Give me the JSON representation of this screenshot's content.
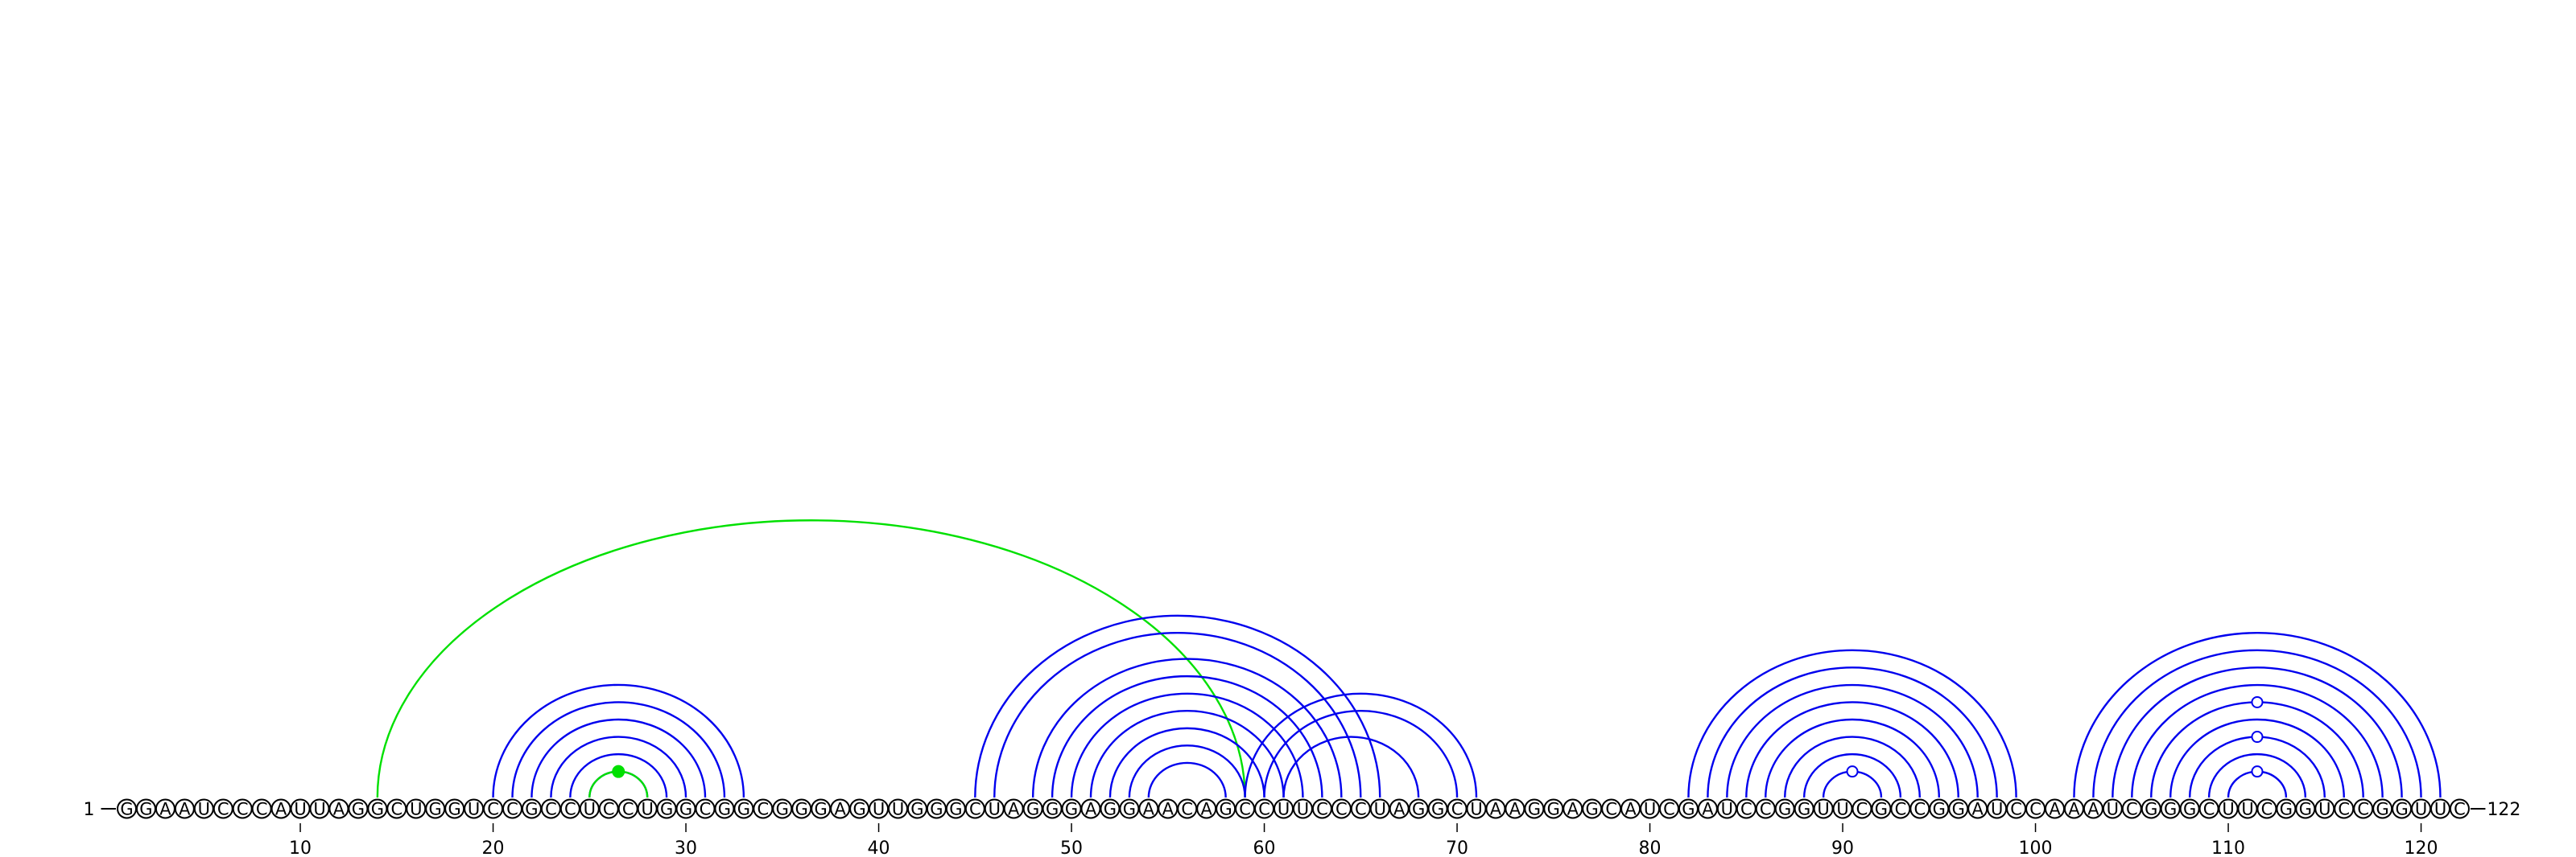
{
  "sequence": "GGAAUCCCAUUAGGCUGGUCCGCCUCCUGGCGGCGGGAGUUGGGCUAGGGAGGAACAGCCUUCCCUAGGCUAAGGAGCAUCGAUCCGGUUCGCCGGAUCCAAAUCGGGCUUCGGUCCGGUUC",
  "start_label": "1",
  "end_label": "122",
  "ticks": [
    10,
    20,
    30,
    40,
    50,
    60,
    70,
    80,
    90,
    100,
    110,
    120
  ],
  "colors": {
    "stem": "#0000ee",
    "pseudoknot": "#00e000"
  },
  "pairs": [
    {
      "i": 20,
      "j": 33,
      "color": "blue"
    },
    {
      "i": 21,
      "j": 32,
      "color": "blue"
    },
    {
      "i": 22,
      "j": 31,
      "color": "blue"
    },
    {
      "i": 23,
      "j": 30,
      "color": "blue"
    },
    {
      "i": 24,
      "j": 29,
      "color": "blue"
    },
    {
      "i": 25,
      "j": 28,
      "color": "blue"
    },
    {
      "i": 25,
      "j": 28,
      "color": "green"
    },
    {
      "i": 14,
      "j": 59,
      "color": "green"
    },
    {
      "i": 45,
      "j": 66,
      "color": "blue"
    },
    {
      "i": 46,
      "j": 65,
      "color": "blue"
    },
    {
      "i": 48,
      "j": 64,
      "color": "blue"
    },
    {
      "i": 49,
      "j": 63,
      "color": "blue"
    },
    {
      "i": 50,
      "j": 62,
      "color": "blue"
    },
    {
      "i": 51,
      "j": 61,
      "color": "blue"
    },
    {
      "i": 52,
      "j": 60,
      "color": "blue"
    },
    {
      "i": 53,
      "j": 59,
      "color": "blue"
    },
    {
      "i": 54,
      "j": 58,
      "color": "blue"
    },
    {
      "i": 59,
      "j": 71,
      "color": "blue"
    },
    {
      "i": 60,
      "j": 70,
      "color": "blue"
    },
    {
      "i": 61,
      "j": 68,
      "color": "blue"
    },
    {
      "i": 82,
      "j": 99,
      "color": "blue"
    },
    {
      "i": 83,
      "j": 98,
      "color": "blue"
    },
    {
      "i": 84,
      "j": 97,
      "color": "blue"
    },
    {
      "i": 85,
      "j": 96,
      "color": "blue"
    },
    {
      "i": 86,
      "j": 95,
      "color": "blue"
    },
    {
      "i": 87,
      "j": 94,
      "color": "blue"
    },
    {
      "i": 88,
      "j": 93,
      "color": "blue"
    },
    {
      "i": 89,
      "j": 92,
      "color": "blue"
    },
    {
      "i": 102,
      "j": 121,
      "color": "blue"
    },
    {
      "i": 103,
      "j": 120,
      "color": "blue"
    },
    {
      "i": 104,
      "j": 119,
      "color": "blue"
    },
    {
      "i": 105,
      "j": 118,
      "color": "blue"
    },
    {
      "i": 106,
      "j": 117,
      "color": "blue"
    },
    {
      "i": 107,
      "j": 116,
      "color": "blue"
    },
    {
      "i": 108,
      "j": 115,
      "color": "blue"
    },
    {
      "i": 109,
      "j": 114,
      "color": "blue"
    },
    {
      "i": 110,
      "j": 113,
      "color": "blue"
    }
  ],
  "markers": [
    {
      "i": 25,
      "j": 28,
      "filled": true,
      "color": "green"
    },
    {
      "i": 89,
      "j": 92,
      "filled": false,
      "color": "blue"
    },
    {
      "i": 110,
      "j": 113,
      "filled": false,
      "color": "blue"
    },
    {
      "i": 108,
      "j": 115,
      "filled": false,
      "color": "blue"
    },
    {
      "i": 106,
      "j": 117,
      "filled": false,
      "color": "blue"
    }
  ]
}
